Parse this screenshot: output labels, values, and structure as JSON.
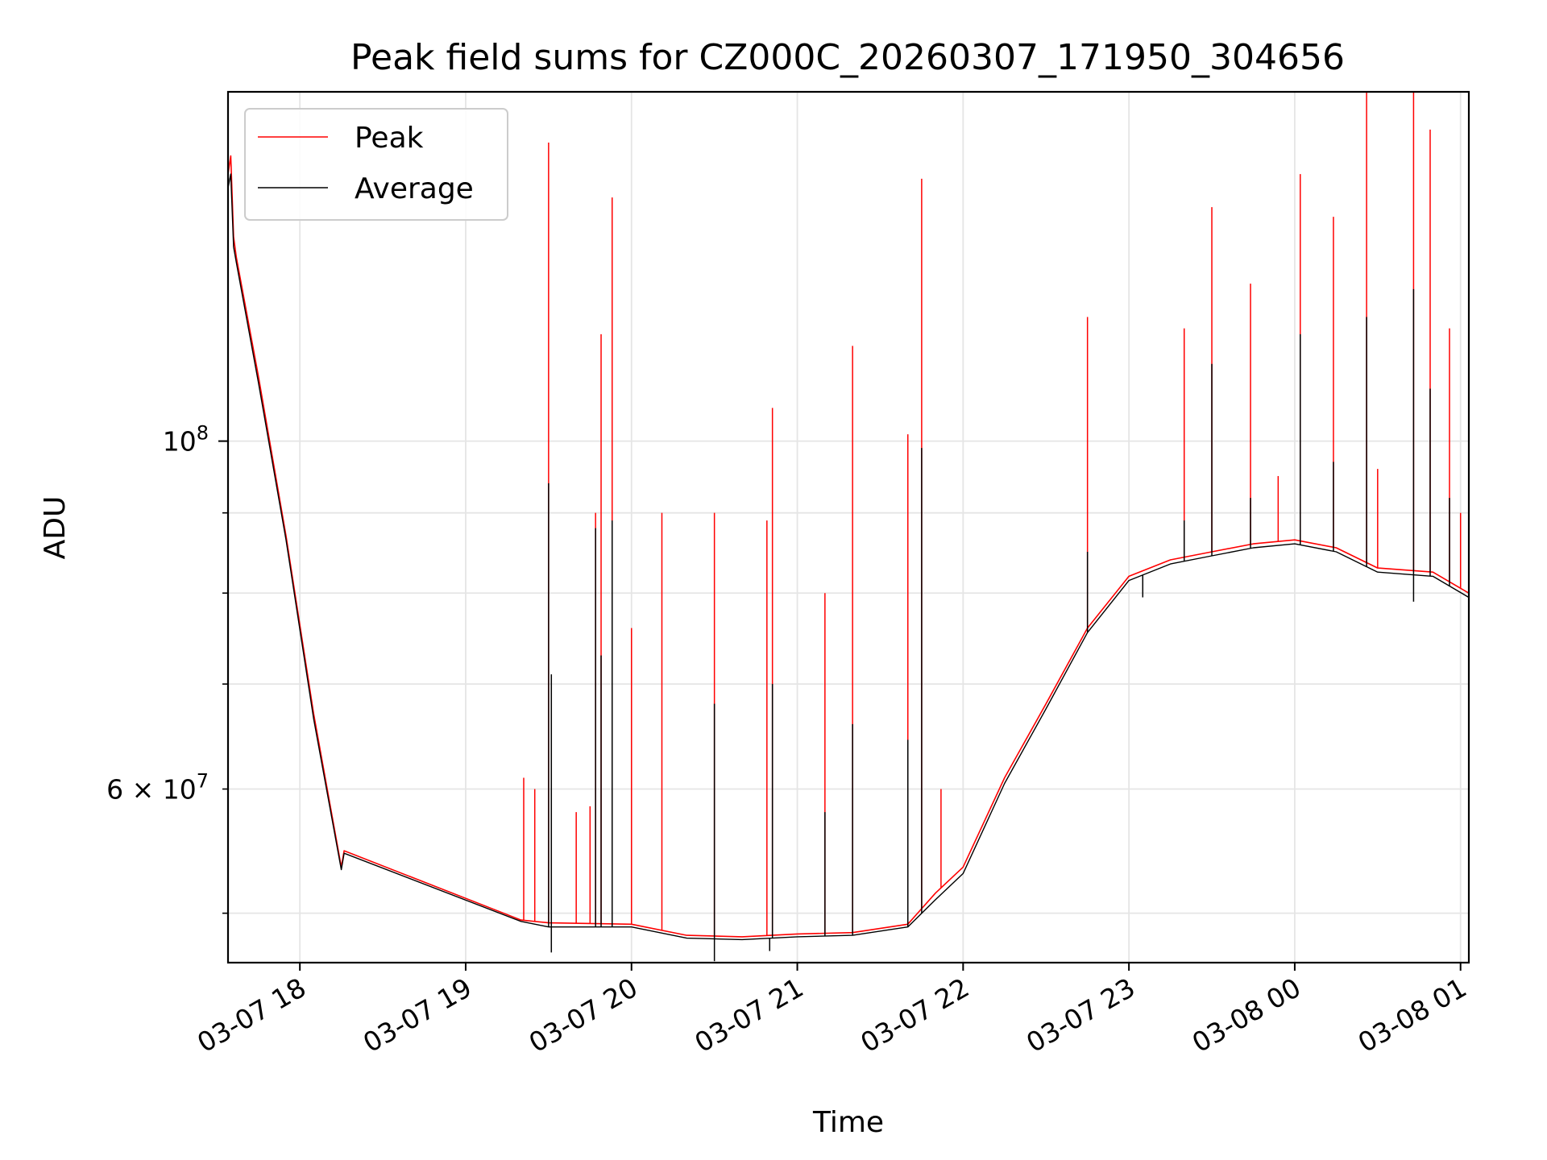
{
  "chart_data": {
    "type": "line",
    "title": "Peak field sums for CZ000C_20260307_171950_304656",
    "xlabel": "Time",
    "ylabel": "ADU",
    "x_axis": {
      "range": [
        "2026-03-07 17:34",
        "2026-03-08 01:03"
      ],
      "ticks": [
        "2026-03-07 18:00",
        "2026-03-07 19:00",
        "2026-03-07 20:00",
        "2026-03-07 21:00",
        "2026-03-07 22:00",
        "2026-03-07 23:00",
        "2026-03-08 00:00",
        "2026-03-08 01:00"
      ],
      "tick_labels": [
        "03-07 18",
        "03-07 19",
        "03-07 20",
        "03-07 21",
        "03-07 22",
        "03-07 23",
        "03-08 00",
        "03-08 01"
      ],
      "tick_label_rotation": 30
    },
    "y_axis": {
      "scale": "log",
      "range": [
        46500000,
        167000000
      ],
      "major_ticks": [
        100000000
      ],
      "major_tick_labels": [
        "10^8"
      ],
      "minor_ticks": [
        50000000,
        60000000,
        70000000,
        80000000,
        90000000
      ],
      "labeled_minor_ticks": [
        60000000
      ],
      "labeled_minor_tick_labels": [
        "6 × 10^7"
      ]
    },
    "grid": true,
    "legend": {
      "position": "top-left",
      "entries": [
        "Peak",
        "Average"
      ]
    },
    "colors": {
      "Peak": "#ff0000",
      "Average": "#000000"
    },
    "series": [
      {
        "name": "Peak",
        "color": "#ff0000",
        "baseline": [
          [
            "2026-03-07 17:34",
            148000000
          ],
          [
            "2026-03-07 17:35",
            152000000
          ],
          [
            "2026-03-07 17:36",
            135000000
          ],
          [
            "2026-03-07 17:37",
            131000000
          ],
          [
            "2026-03-07 17:45",
            110000000
          ],
          [
            "2026-03-07 17:55",
            87000000
          ],
          [
            "2026-03-07 18:05",
            67000000
          ],
          [
            "2026-03-07 18:15",
            53500000
          ],
          [
            "2026-03-07 18:16",
            54800000
          ],
          [
            "2026-03-07 19:20",
            49500000
          ],
          [
            "2026-03-07 19:30",
            49300000
          ],
          [
            "2026-03-07 20:00",
            49200000
          ],
          [
            "2026-03-07 20:20",
            48400000
          ],
          [
            "2026-03-07 20:40",
            48300000
          ],
          [
            "2026-03-07 21:00",
            48500000
          ],
          [
            "2026-03-07 21:20",
            48600000
          ],
          [
            "2026-03-07 21:40",
            49200000
          ],
          [
            "2026-03-07 21:50",
            51500000
          ],
          [
            "2026-03-07 22:00",
            53500000
          ],
          [
            "2026-03-07 22:15",
            61000000
          ],
          [
            "2026-03-07 22:30",
            68000000
          ],
          [
            "2026-03-07 22:45",
            76000000
          ],
          [
            "2026-03-07 23:00",
            82000000
          ],
          [
            "2026-03-07 23:15",
            84000000
          ],
          [
            "2026-03-07 23:30",
            85000000
          ],
          [
            "2026-03-07 23:45",
            86000000
          ],
          [
            "2026-03-08 00:00",
            86500000
          ],
          [
            "2026-03-08 00:15",
            85500000
          ],
          [
            "2026-03-08 00:30",
            83000000
          ],
          [
            "2026-03-08 00:50",
            82500000
          ],
          [
            "2026-03-08 01:03",
            80000000
          ]
        ],
        "spikes": [
          [
            "2026-03-07 19:21",
            61000000
          ],
          [
            "2026-03-07 19:25",
            60000000
          ],
          [
            "2026-03-07 19:30",
            155000000
          ],
          [
            "2026-03-07 19:40",
            58000000
          ],
          [
            "2026-03-07 19:45",
            58500000
          ],
          [
            "2026-03-07 19:47",
            90000000
          ],
          [
            "2026-03-07 19:49",
            117000000
          ],
          [
            "2026-03-07 19:53",
            143000000
          ],
          [
            "2026-03-07 20:00",
            76000000
          ],
          [
            "2026-03-07 20:11",
            90000000
          ],
          [
            "2026-03-07 20:30",
            90000000
          ],
          [
            "2026-03-07 20:49",
            89000000
          ],
          [
            "2026-03-07 20:51",
            105000000
          ],
          [
            "2026-03-07 21:10",
            80000000
          ],
          [
            "2026-03-07 21:20",
            115000000
          ],
          [
            "2026-03-07 21:40",
            101000000
          ],
          [
            "2026-03-07 21:45",
            147000000
          ],
          [
            "2026-03-07 21:52",
            60000000
          ],
          [
            "2026-03-07 22:45",
            120000000
          ],
          [
            "2026-03-07 23:20",
            118000000
          ],
          [
            "2026-03-07 23:30",
            141000000
          ],
          [
            "2026-03-07 23:44",
            126000000
          ],
          [
            "2026-03-07 23:54",
            95000000
          ],
          [
            "2026-03-08 00:02",
            148000000
          ],
          [
            "2026-03-08 00:14",
            139000000
          ],
          [
            "2026-03-08 00:26",
            167000000
          ],
          [
            "2026-03-08 00:30",
            96000000
          ],
          [
            "2026-03-08 00:43",
            167000000
          ],
          [
            "2026-03-08 00:49",
            158000000
          ],
          [
            "2026-03-08 00:56",
            118000000
          ],
          [
            "2026-03-08 01:00",
            90000000
          ]
        ]
      },
      {
        "name": "Average",
        "color": "#000000",
        "baseline": [
          [
            "2026-03-07 17:34",
            145000000
          ],
          [
            "2026-03-07 17:35",
            148000000
          ],
          [
            "2026-03-07 17:36",
            133000000
          ],
          [
            "2026-03-07 17:37",
            130000000
          ],
          [
            "2026-03-07 17:45",
            109000000
          ],
          [
            "2026-03-07 17:55",
            86500000
          ],
          [
            "2026-03-07 18:05",
            66500000
          ],
          [
            "2026-03-07 18:15",
            53300000
          ],
          [
            "2026-03-07 18:16",
            54600000
          ],
          [
            "2026-03-07 19:20",
            49400000
          ],
          [
            "2026-03-07 19:30",
            49000000
          ],
          [
            "2026-03-07 20:00",
            49000000
          ],
          [
            "2026-03-07 20:20",
            48200000
          ],
          [
            "2026-03-07 20:40",
            48100000
          ],
          [
            "2026-03-07 21:00",
            48300000
          ],
          [
            "2026-03-07 21:20",
            48400000
          ],
          [
            "2026-03-07 21:40",
            49000000
          ],
          [
            "2026-03-07 21:50",
            51000000
          ],
          [
            "2026-03-07 22:00",
            53000000
          ],
          [
            "2026-03-07 22:15",
            60500000
          ],
          [
            "2026-03-07 22:30",
            67500000
          ],
          [
            "2026-03-07 22:45",
            75500000
          ],
          [
            "2026-03-07 23:00",
            81500000
          ],
          [
            "2026-03-07 23:15",
            83500000
          ],
          [
            "2026-03-07 23:30",
            84500000
          ],
          [
            "2026-03-07 23:45",
            85500000
          ],
          [
            "2026-03-08 00:00",
            86000000
          ],
          [
            "2026-03-08 00:15",
            85000000
          ],
          [
            "2026-03-08 00:30",
            82500000
          ],
          [
            "2026-03-08 00:50",
            82000000
          ],
          [
            "2026-03-08 01:03",
            79500000
          ]
        ],
        "spikes": [
          [
            "2026-03-07 19:30",
            94000000
          ],
          [
            "2026-03-07 19:31",
            71000000
          ],
          [
            "2026-03-07 19:47",
            88000000
          ],
          [
            "2026-03-07 19:49",
            73000000
          ],
          [
            "2026-03-07 19:53",
            89000000
          ],
          [
            "2026-03-07 20:30",
            68000000
          ],
          [
            "2026-03-07 20:51",
            70000000
          ],
          [
            "2026-03-07 21:10",
            58000000
          ],
          [
            "2026-03-07 21:20",
            66000000
          ],
          [
            "2026-03-07 21:40",
            64500000
          ],
          [
            "2026-03-07 21:45",
            99000000
          ],
          [
            "2026-03-07 22:45",
            85000000
          ],
          [
            "2026-03-07 23:20",
            89000000
          ],
          [
            "2026-03-07 23:30",
            112000000
          ],
          [
            "2026-03-07 23:44",
            92000000
          ],
          [
            "2026-03-08 00:02",
            117000000
          ],
          [
            "2026-03-08 00:14",
            97000000
          ],
          [
            "2026-03-08 00:26",
            120000000
          ],
          [
            "2026-03-08 00:43",
            125000000
          ],
          [
            "2026-03-08 00:49",
            108000000
          ],
          [
            "2026-03-08 00:56",
            92000000
          ]
        ],
        "dips": [
          [
            "2026-03-07 19:31",
            47200000
          ],
          [
            "2026-03-07 20:30",
            46600000
          ],
          [
            "2026-03-07 20:50",
            47300000
          ],
          [
            "2026-03-07 23:05",
            79500000
          ],
          [
            "2026-03-08 00:43",
            79000000
          ]
        ]
      }
    ]
  }
}
